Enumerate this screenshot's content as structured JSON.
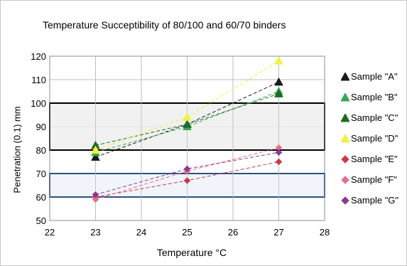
{
  "chart_data": {
    "type": "line",
    "title": "Temperature Succeptibility of 80/100 and 60/70 binders",
    "xlabel": "Temperature °C",
    "ylabel": "Penetration (0.1) mm",
    "xlim": [
      22,
      28
    ],
    "ylim": [
      50,
      120
    ],
    "xticks": [
      "22",
      "23",
      "24",
      "25",
      "26",
      "27",
      "28"
    ],
    "yticks": [
      "50",
      "60",
      "70",
      "80",
      "90",
      "100",
      "110",
      "120"
    ],
    "grid": "vertical and horizontal major gridlines",
    "legend_position": "right",
    "bands": [
      {
        "ymin": 80,
        "ymax": 100,
        "fill": "#efefef",
        "stroke": "#000000"
      },
      {
        "ymin": 60,
        "ymax": 70,
        "fill": "#eef2f9",
        "stroke": "#2c4f86"
      }
    ],
    "x": [
      23,
      25,
      27
    ],
    "series": [
      {
        "name": "Sample \"A\"",
        "values": [
          77,
          91,
          109
        ],
        "color": "#1a1a1a",
        "marker": "triangle"
      },
      {
        "name": "Sample \"B\"",
        "values": [
          79,
          90,
          105
        ],
        "color": "#3aa655",
        "marker": "triangle"
      },
      {
        "name": "Sample \"C\"",
        "values": [
          82,
          91,
          104
        ],
        "color": "#1e6b26",
        "marker": "triangle"
      },
      {
        "name": "Sample \"D\"",
        "values": [
          80,
          94,
          118
        ],
        "color": "#f0f046",
        "marker": "triangle"
      },
      {
        "name": "Sample \"E\"",
        "values": [
          60,
          67,
          75
        ],
        "color": "#cc3a4a",
        "marker": "diamond"
      },
      {
        "name": "Sample \"F\"",
        "values": [
          59,
          71,
          81
        ],
        "color": "#e2708a",
        "marker": "diamond"
      },
      {
        "name": "Sample \"G\"",
        "values": [
          61,
          72,
          79
        ],
        "color": "#8b3a8e",
        "marker": "diamond"
      }
    ]
  }
}
